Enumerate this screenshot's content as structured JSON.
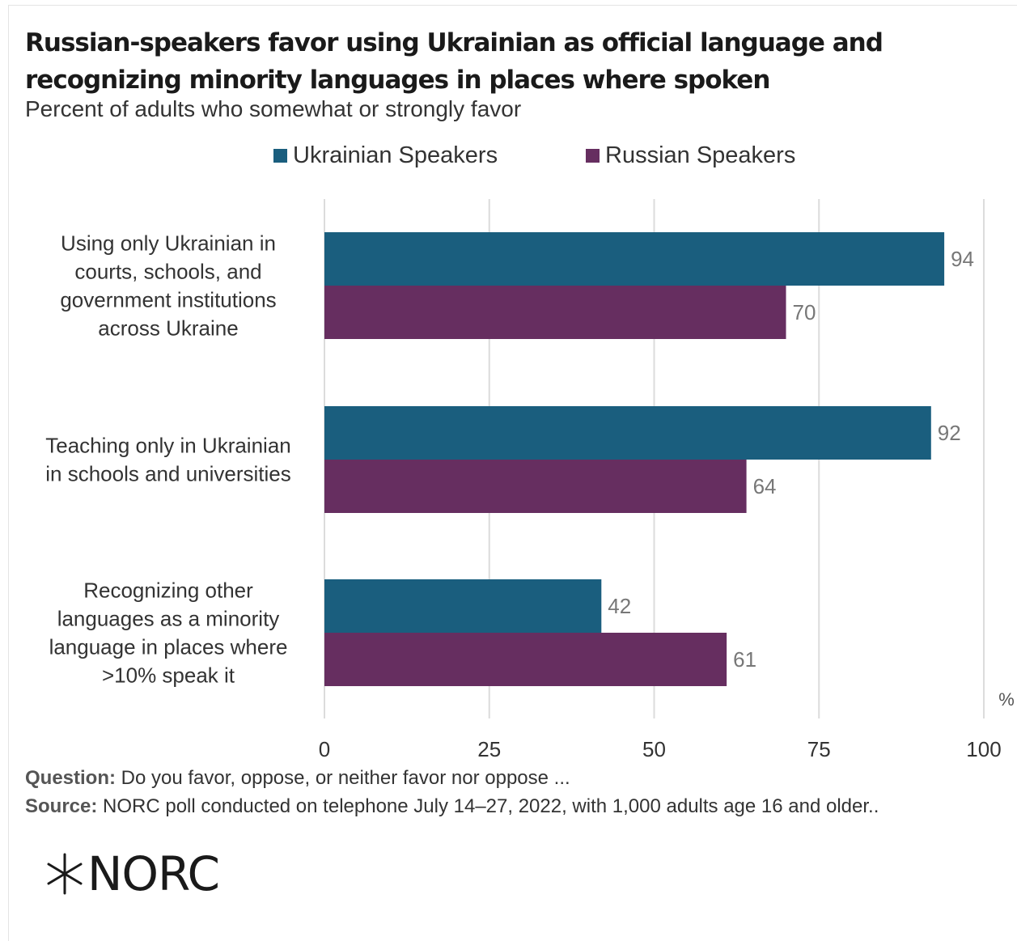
{
  "title": "Russian-speakers favor using Ukrainian as official language and recognizing minority languages in places where spoken",
  "subtitle": "Percent of adults who somewhat or strongly favor",
  "footnotes": {
    "question_label": "Question:",
    "question_text": " Do you favor, oppose, or neither favor nor oppose ...",
    "source_label": "Source:",
    "source_text": " NORC poll conducted on telephone July 14–27, 2022, with 1,000 adults age 16 and older.."
  },
  "logo": {
    "text": "NORC",
    "icon": "star-burst-icon"
  },
  "colors": {
    "ukrainian": "#1a5e7e",
    "russian": "#662e60",
    "grid": "#dcdcdc"
  },
  "chart_data": {
    "type": "bar",
    "orientation": "horizontal",
    "categories": [
      [
        "Using only Ukrainian in",
        "courts, schools, and",
        "government institutions",
        "across Ukraine"
      ],
      [
        "Teaching only in Ukrainian",
        "in schools and universities"
      ],
      [
        "Recognizing other",
        "languages as a minority",
        "language in places where",
        ">10% speak it"
      ]
    ],
    "series": [
      {
        "name": "Ukrainian Speakers",
        "values": [
          94,
          92,
          42
        ]
      },
      {
        "name": "Russian Speakers",
        "values": [
          70,
          64,
          61
        ]
      }
    ],
    "xlim": [
      0,
      100
    ],
    "xticks": [
      "0",
      "25",
      "50",
      "75",
      "100"
    ],
    "unit": "%",
    "grid": true,
    "legend_position": "top"
  }
}
